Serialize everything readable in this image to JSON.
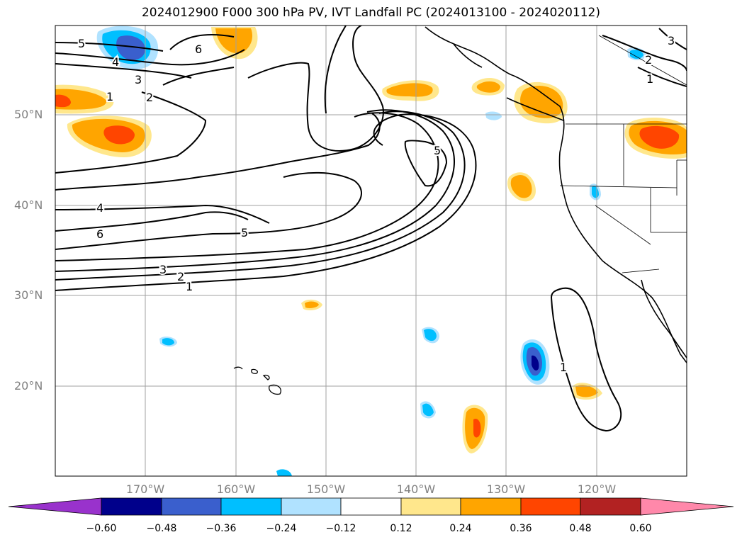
{
  "title": "2024012900 F000 300 hPa PV, IVT Landfall PC (2024013100 - 2024020112)",
  "lat_labels": [
    "50°N",
    "40°N",
    "30°N",
    "20°N"
  ],
  "lon_labels": [
    "170°W",
    "160°W",
    "150°W",
    "140°W",
    "130°W",
    "120°W"
  ],
  "contour_labels": [
    "5",
    "4",
    "3",
    "2",
    "1",
    "6",
    "4",
    "6",
    "5",
    "3",
    "2",
    "1",
    "5",
    "1",
    "2",
    "1",
    "3"
  ],
  "colorbar": {
    "ticks": [
      "−0.60",
      "−0.48",
      "−0.36",
      "−0.24",
      "−0.12",
      "0.12",
      "0.24",
      "0.36",
      "0.48",
      "0.60"
    ],
    "colors": [
      "#9932cc",
      "#00008b",
      "#3a5fcd",
      "#00bfff",
      "#b0e2ff",
      "#ffffff",
      "#ffe78c",
      "#ffa500",
      "#ff4500",
      "#b22222",
      "#ff88aa"
    ]
  },
  "colors": {
    "neg_light": "#b0e2ff",
    "neg_mid": "#00bfff",
    "neg_strong": "#3a5fcd",
    "neg_max": "#00008b",
    "pos_light": "#ffe78c",
    "pos_mid": "#ffa500",
    "pos_strong": "#ff4500"
  }
}
